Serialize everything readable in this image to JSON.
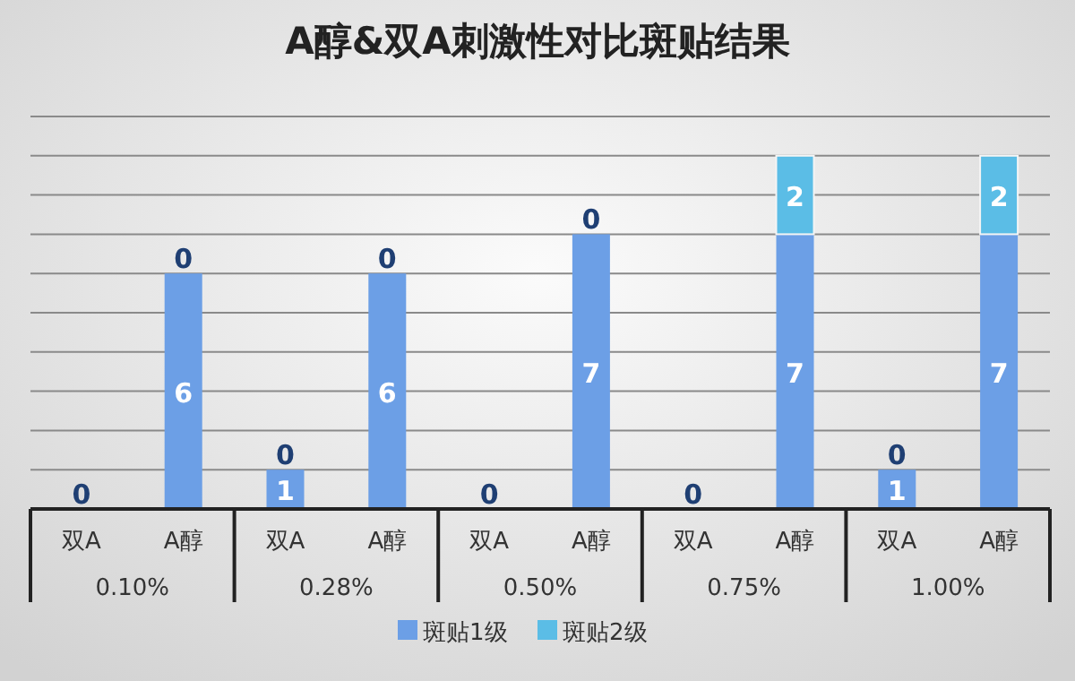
{
  "chart_data": {
    "type": "bar",
    "title": "A醇&双A刺激性对比斑贴结果",
    "categories": [
      "双A",
      "A醇",
      "双A",
      "A醇",
      "双A",
      "A醇",
      "双A",
      "A醇",
      "双A",
      "A醇"
    ],
    "annotations": [
      "0.10%",
      "0.28%",
      "0.50%",
      "0.75%",
      "1.00%"
    ],
    "stacked": true,
    "series": [
      {
        "name": "斑贴1级",
        "color": "#6c9fe6",
        "values": [
          0,
          6,
          1,
          6,
          0,
          7,
          0,
          7,
          1,
          7
        ],
        "value_labels": [
          "0",
          "6",
          "1",
          "6",
          "0",
          "7",
          "0",
          "7",
          "1",
          "7"
        ]
      },
      {
        "name": "斑贴2级",
        "color": "#5bbde6",
        "values": [
          0,
          0,
          0,
          0,
          0,
          0,
          0,
          2,
          0,
          2
        ],
        "value_labels": [
          null,
          "0",
          "0",
          "0",
          null,
          "0",
          null,
          "2",
          "0",
          "2"
        ]
      }
    ],
    "ylim": [
      0,
      10
    ],
    "yticks": [
      {
        "value": 0,
        "label": null
      },
      {
        "value": 1,
        "label": null
      },
      {
        "value": 2,
        "label": null
      },
      {
        "value": 3,
        "label": null
      },
      {
        "value": 4,
        "label": null
      },
      {
        "value": 5,
        "label": null
      },
      {
        "value": 6,
        "label": null
      },
      {
        "value": 7,
        "label": null
      },
      {
        "value": 8,
        "label": null
      },
      {
        "value": 9,
        "label": null
      },
      {
        "value": 10,
        "label": null
      }
    ],
    "grid": "y",
    "legend": "bottom",
    "tick_labels": "x"
  }
}
